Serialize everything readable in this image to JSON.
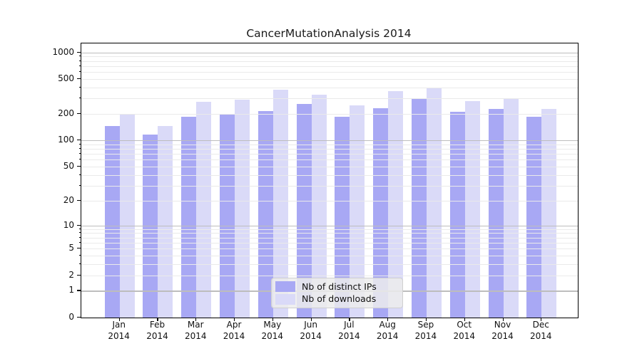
{
  "page": {
    "background": "#ffffff"
  },
  "chart_data": {
    "type": "bar",
    "title": "CancerMutationAnalysis 2014",
    "categories": [
      "Jan",
      "Feb",
      "Mar",
      "Apr",
      "May",
      "Jun",
      "Jul",
      "Aug",
      "Sep",
      "Oct",
      "Nov",
      "Dec"
    ],
    "x_year": "2014",
    "series": [
      {
        "name": "Nb of distinct IPs",
        "color": "#a8a8f4",
        "values": [
          146,
          116,
          187,
          202,
          217,
          259,
          185,
          233,
          304,
          212,
          227,
          186
        ]
      },
      {
        "name": "Nb of downloads",
        "color": "#dadaf8",
        "values": [
          200,
          145,
          276,
          291,
          376,
          334,
          252,
          366,
          394,
          282,
          297,
          227
        ]
      }
    ],
    "y_axis": {
      "scale": "log1p",
      "range": [
        0,
        1000
      ],
      "labeled_ticks": [
        0,
        1,
        2,
        5,
        10,
        20,
        50,
        100,
        200,
        500,
        1000
      ],
      "major_gridline_values": [
        1,
        10,
        100,
        1000
      ],
      "minor_gridline_values": [
        2,
        3,
        4,
        5,
        6,
        7,
        8,
        9,
        20,
        30,
        40,
        50,
        60,
        70,
        80,
        90,
        200,
        300,
        400,
        500,
        600,
        700,
        800,
        900
      ]
    },
    "grid": {
      "on": true,
      "major_color": "#bdbdbd",
      "minor_color": "#eaeaea"
    },
    "legend": {
      "position": "bottom-center-inside",
      "entries": [
        {
          "label": "Nb of distinct IPs",
          "color": "#a8a8f4"
        },
        {
          "label": "Nb of downloads",
          "color": "#dadaf8"
        }
      ]
    }
  }
}
